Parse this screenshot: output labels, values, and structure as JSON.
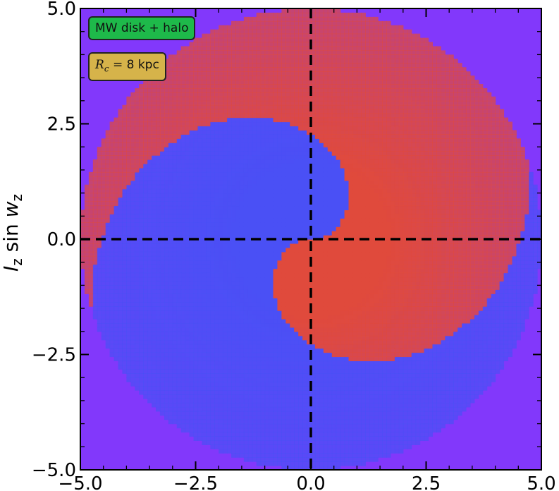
{
  "chart_data": {
    "type": "heatmap",
    "title": "",
    "xlabel": "",
    "ylabel": "I_z sin w_z",
    "ylabel_parts": {
      "main": "I",
      "sub": "z",
      "mid": " sin ",
      "main2": "w",
      "sub2": "z"
    },
    "xlim": [
      -5.0,
      5.0
    ],
    "ylim": [
      -5.0,
      5.0
    ],
    "x_ticks": [
      -5.0,
      -2.5,
      0.0,
      2.5,
      5.0
    ],
    "y_ticks": [
      -5.0,
      -2.5,
      0.0,
      2.5,
      5.0
    ],
    "x_tick_labels": [
      "−5.0",
      "−2.5",
      "0.0",
      "2.5",
      "5.0"
    ],
    "y_tick_labels": [
      "−5.0",
      "−2.5",
      "0.0",
      "2.5",
      "5.0"
    ],
    "minor_tick_step": 0.5,
    "grid": false,
    "reference_lines": [
      {
        "orientation": "vertical",
        "x": 0.0,
        "style": "dashed",
        "color": "#000000"
      },
      {
        "orientation": "horizontal",
        "y": 0.0,
        "style": "dashed",
        "color": "#000000"
      }
    ],
    "spiral": {
      "outer_radius": 5.0,
      "inner_gap_radius": 0.25,
      "arm_count": 2,
      "phase_turns_at_outer_radius": 0.55,
      "color_positive": "#e04a3c",
      "color_negative": "#4a50f5",
      "color_background": "#8238fb"
    },
    "annotations": [
      {
        "text": "MW disk + halo",
        "location": "top-left",
        "box_color": "#1eb94a"
      },
      {
        "text": "R_c = 8 kpc",
        "parts": {
          "sym": "R",
          "sub": "c",
          "rest": " = 8 kpc"
        },
        "location": "top-left",
        "box_color": "#d6b34a"
      }
    ]
  }
}
